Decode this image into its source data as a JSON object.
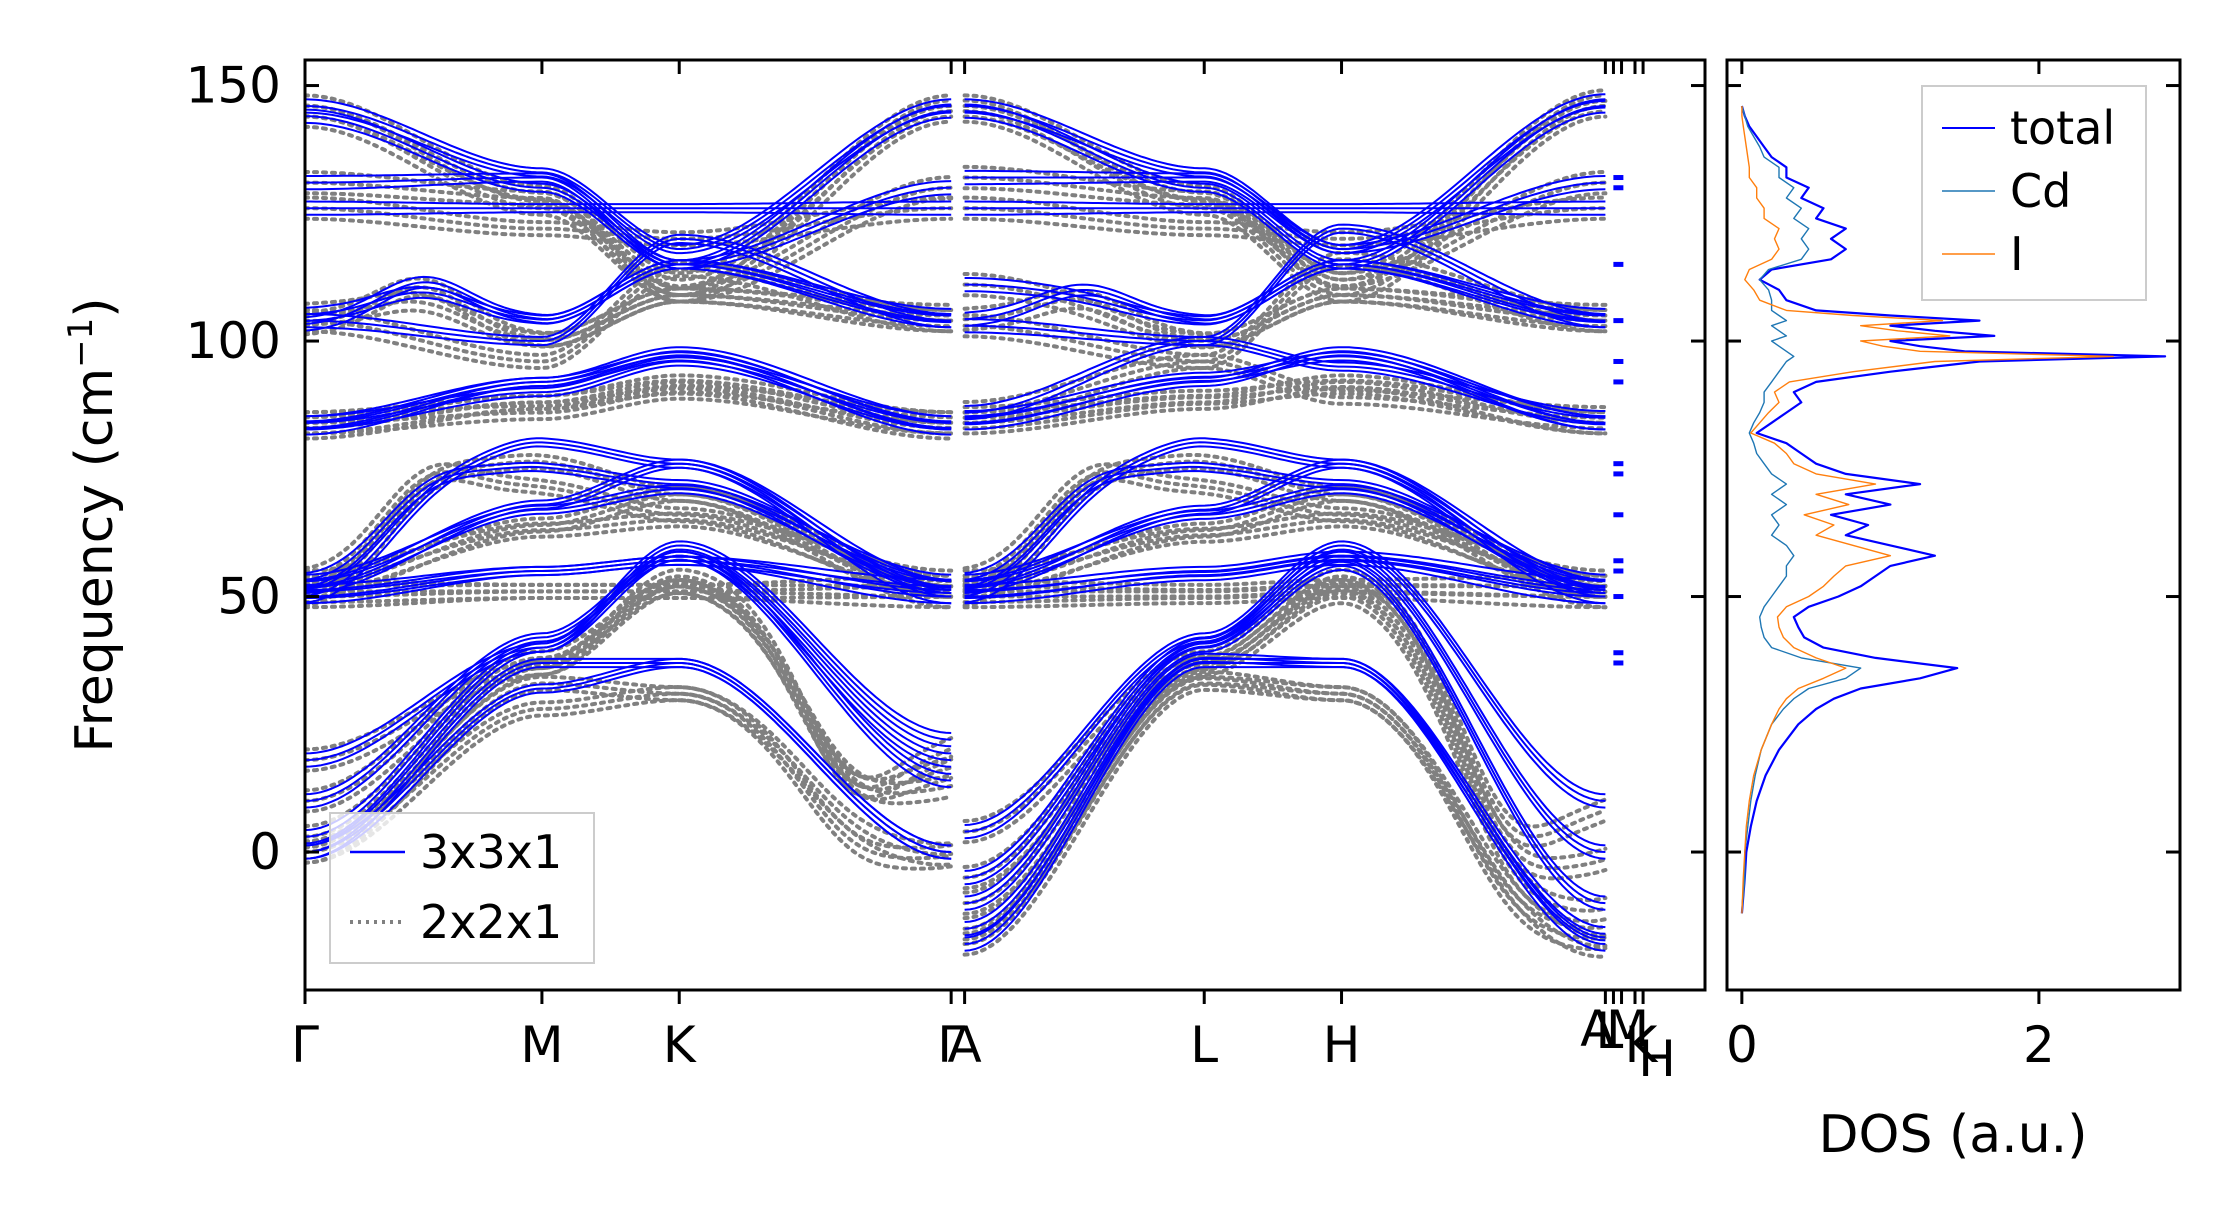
{
  "chart_data": [
    {
      "type": "line",
      "panel": "band-structure",
      "ylabel": "Frequency (cm⁻¹)",
      "ylabel_base": "Frequency (cm",
      "ylabel_sup": "−1",
      "ylabel_end": ")",
      "ylim": [
        -27,
        155
      ],
      "yticks": [
        0,
        50,
        100,
        150
      ],
      "ytick_labels": [
        "0",
        "50",
        "100",
        "150"
      ],
      "xlim": [
        0,
        5.2
      ],
      "kpoints": [
        {
          "label": "Γ",
          "x": 0.0
        },
        {
          "label": "M",
          "x": 0.88
        },
        {
          "label": "K",
          "x": 1.39
        },
        {
          "label": "Γ",
          "x": 2.4
        },
        {
          "label": "A",
          "x": 2.45
        },
        {
          "label": "L",
          "x": 3.34
        },
        {
          "label": "H",
          "x": 3.85
        },
        {
          "label": "A",
          "x": 4.83
        },
        {
          "label": "L",
          "x": 4.86
        },
        {
          "label": "M",
          "x": 4.89
        },
        {
          "label": "K",
          "x": 4.94
        },
        {
          "label": "H",
          "x": 4.97
        }
      ],
      "legend_position": "lower-left",
      "series": [
        {
          "name": "3x3x1",
          "color": "#0000ff",
          "style": "solid"
        },
        {
          "name": "2x2x1",
          "color": "#808080",
          "style": "dotted"
        }
      ]
    },
    {
      "type": "line",
      "panel": "dos",
      "xlabel": "DOS (a.u.)",
      "xlim": [
        -0.1,
        2.95
      ],
      "xticks": [
        0,
        2
      ],
      "xtick_labels": [
        "0",
        "2"
      ],
      "ylim": [
        -27,
        155
      ],
      "legend_position": "upper-right",
      "series": [
        {
          "name": "total",
          "color": "#0000ff",
          "freq": [
            -12,
            -5,
            0,
            5,
            10,
            15,
            20,
            25,
            28,
            30,
            32,
            34,
            36,
            38,
            40,
            42,
            44,
            46,
            48,
            50,
            52,
            54,
            56,
            58,
            60,
            62,
            64,
            66,
            68,
            70,
            72,
            74,
            76,
            78,
            80,
            82,
            84,
            86,
            88,
            90,
            92,
            94,
            96,
            97,
            98,
            99,
            100,
            101,
            102,
            103,
            104,
            105,
            106,
            108,
            110,
            112,
            114,
            116,
            118,
            120,
            122,
            124,
            126,
            128,
            130,
            132,
            134,
            136,
            138,
            140,
            142,
            144,
            146
          ],
          "values": [
            0.0,
            0.02,
            0.03,
            0.06,
            0.1,
            0.16,
            0.25,
            0.38,
            0.5,
            0.62,
            0.8,
            1.2,
            1.45,
            0.9,
            0.55,
            0.42,
            0.38,
            0.35,
            0.45,
            0.65,
            0.8,
            0.9,
            1.0,
            1.3,
            1.0,
            0.7,
            0.85,
            0.6,
            1.0,
            0.7,
            1.2,
            0.7,
            0.5,
            0.4,
            0.3,
            0.1,
            0.2,
            0.3,
            0.4,
            0.35,
            0.5,
            1.0,
            1.6,
            2.85,
            1.5,
            1.2,
            1.0,
            1.7,
            1.3,
            1.0,
            1.6,
            1.0,
            0.5,
            0.3,
            0.25,
            0.12,
            0.2,
            0.6,
            0.7,
            0.6,
            0.7,
            0.5,
            0.55,
            0.4,
            0.45,
            0.3,
            0.3,
            0.2,
            0.15,
            0.1,
            0.05,
            0.02,
            0.0
          ]
        },
        {
          "name": "Cd",
          "color": "#1f77b4",
          "freq": [
            -12,
            -5,
            0,
            5,
            10,
            15,
            20,
            25,
            28,
            30,
            32,
            34,
            36,
            38,
            40,
            42,
            44,
            46,
            48,
            50,
            52,
            54,
            56,
            58,
            60,
            62,
            64,
            66,
            68,
            70,
            72,
            74,
            76,
            78,
            80,
            82,
            84,
            86,
            88,
            90,
            92,
            94,
            96,
            97,
            98,
            99,
            100,
            101,
            102,
            103,
            104,
            105,
            106,
            108,
            110,
            112,
            114,
            116,
            118,
            120,
            122,
            124,
            126,
            128,
            130,
            132,
            134,
            136,
            138,
            140,
            142,
            144,
            146
          ],
          "values": [
            0.0,
            0.02,
            0.02,
            0.04,
            0.06,
            0.09,
            0.13,
            0.2,
            0.28,
            0.35,
            0.45,
            0.7,
            0.8,
            0.4,
            0.2,
            0.15,
            0.13,
            0.12,
            0.15,
            0.2,
            0.25,
            0.3,
            0.3,
            0.35,
            0.3,
            0.2,
            0.25,
            0.2,
            0.3,
            0.2,
            0.3,
            0.2,
            0.15,
            0.1,
            0.08,
            0.05,
            0.08,
            0.12,
            0.15,
            0.15,
            0.2,
            0.25,
            0.3,
            0.35,
            0.3,
            0.25,
            0.2,
            0.3,
            0.25,
            0.2,
            0.3,
            0.25,
            0.2,
            0.2,
            0.18,
            0.12,
            0.18,
            0.4,
            0.45,
            0.4,
            0.45,
            0.35,
            0.4,
            0.3,
            0.35,
            0.25,
            0.25,
            0.15,
            0.12,
            0.08,
            0.04,
            0.02,
            0.0
          ]
        },
        {
          "name": "I",
          "color": "#ff7f0e",
          "freq": [
            -12,
            -5,
            0,
            5,
            10,
            15,
            20,
            25,
            28,
            30,
            32,
            34,
            36,
            38,
            40,
            42,
            44,
            46,
            48,
            50,
            52,
            54,
            56,
            58,
            60,
            62,
            64,
            66,
            68,
            70,
            72,
            74,
            76,
            78,
            80,
            82,
            84,
            86,
            88,
            90,
            92,
            94,
            96,
            97,
            98,
            99,
            100,
            101,
            102,
            103,
            104,
            105,
            106,
            108,
            110,
            112,
            114,
            116,
            118,
            120,
            122,
            124,
            126,
            128,
            130,
            132,
            134,
            136,
            138,
            140,
            142,
            144,
            146
          ],
          "values": [
            0.0,
            0.01,
            0.02,
            0.03,
            0.05,
            0.08,
            0.13,
            0.2,
            0.25,
            0.3,
            0.38,
            0.55,
            0.7,
            0.5,
            0.35,
            0.28,
            0.25,
            0.24,
            0.3,
            0.45,
            0.55,
            0.62,
            0.7,
            1.0,
            0.75,
            0.5,
            0.62,
            0.42,
            0.72,
            0.5,
            0.9,
            0.5,
            0.35,
            0.3,
            0.22,
            0.06,
            0.12,
            0.18,
            0.25,
            0.22,
            0.32,
            0.75,
            1.3,
            2.5,
            1.2,
            0.95,
            0.8,
            1.4,
            1.05,
            0.8,
            1.35,
            0.75,
            0.3,
            0.12,
            0.08,
            0.02,
            0.05,
            0.2,
            0.25,
            0.22,
            0.25,
            0.15,
            0.15,
            0.1,
            0.1,
            0.05,
            0.05,
            0.04,
            0.03,
            0.02,
            0.01,
            0.0,
            0.0
          ]
        }
      ]
    }
  ]
}
